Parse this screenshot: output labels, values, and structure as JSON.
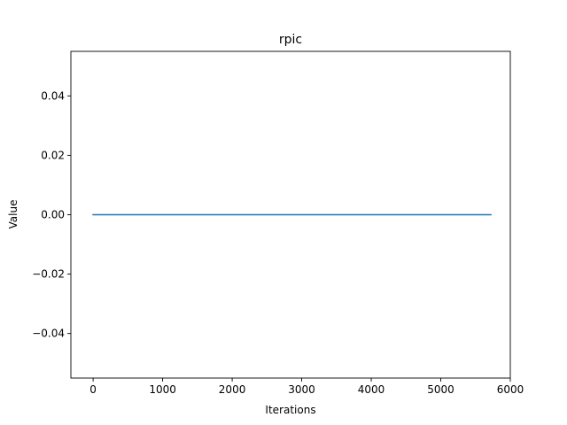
{
  "chart_data": {
    "type": "line",
    "title": "rpic",
    "xlabel": "Iterations",
    "ylabel": "Value",
    "xlim": [
      -320,
      6000
    ],
    "ylim": [
      -0.055,
      0.055
    ],
    "xticks": [
      0,
      1000,
      2000,
      3000,
      4000,
      5000,
      6000
    ],
    "xtick_labels": [
      "0",
      "1000",
      "2000",
      "3000",
      "4000",
      "5000",
      "6000"
    ],
    "yticks": [
      0.04,
      0.02,
      0.0,
      -0.02,
      -0.04
    ],
    "ytick_labels": [
      "0.04",
      "0.02",
      "0.00",
      "−0.02",
      "−0.04"
    ],
    "grid": false,
    "series": [
      {
        "color": "#1f77b4",
        "x": [
          0,
          5720
        ],
        "y": [
          0.0,
          0.0
        ]
      }
    ]
  }
}
